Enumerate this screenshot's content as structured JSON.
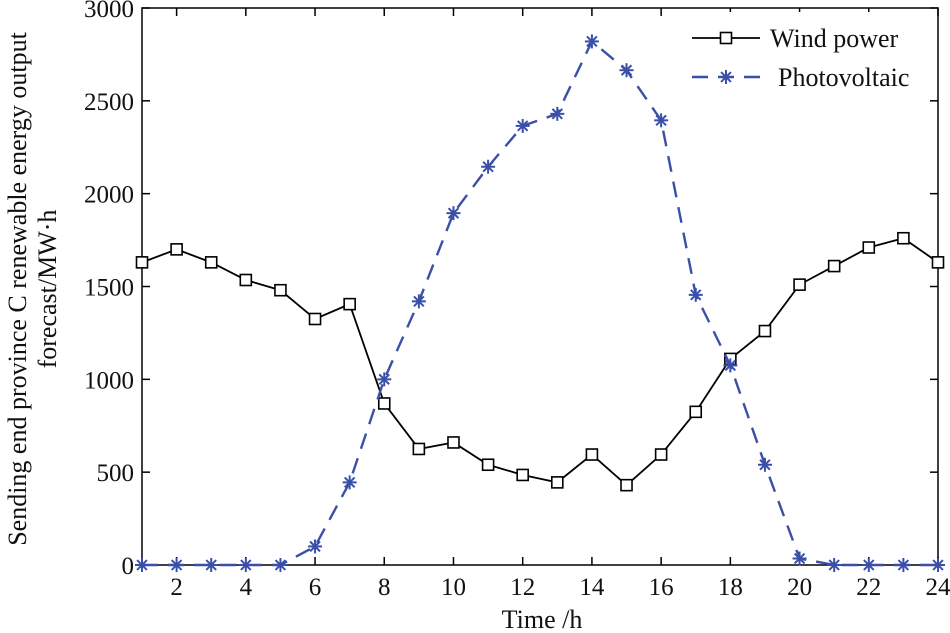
{
  "chart_data": {
    "type": "line",
    "title": "",
    "xlabel": "Time /h",
    "ylabel_line1": "Sending end province C renewable energy output",
    "ylabel_line2": "forecast/MW·h",
    "xlim": [
      1,
      24
    ],
    "ylim": [
      0,
      3000
    ],
    "x_ticks": [
      2,
      4,
      6,
      8,
      10,
      12,
      14,
      16,
      18,
      20,
      22,
      24
    ],
    "y_ticks": [
      0,
      500,
      1000,
      1500,
      2000,
      2500,
      3000
    ],
    "grid": false,
    "legend_position": "top-right",
    "x": [
      1,
      2,
      3,
      4,
      5,
      6,
      7,
      8,
      9,
      10,
      11,
      12,
      13,
      14,
      15,
      16,
      17,
      18,
      19,
      20,
      21,
      22,
      23,
      24
    ],
    "series": [
      {
        "name": "Wind power",
        "color": "#000000",
        "line_style": "solid",
        "marker": "square",
        "values": [
          1630,
          1700,
          1630,
          1535,
          1480,
          1325,
          1405,
          870,
          625,
          660,
          540,
          485,
          445,
          595,
          430,
          595,
          825,
          1110,
          1260,
          1510,
          1610,
          1710,
          1760,
          1630
        ]
      },
      {
        "name": "Photovoltaic",
        "color": "#3a4fa8",
        "line_style": "dashed",
        "marker": "asterisk",
        "values": [
          0,
          0,
          0,
          0,
          0,
          100,
          445,
          1000,
          1420,
          1895,
          2145,
          2365,
          2430,
          2820,
          2665,
          2395,
          1455,
          1075,
          540,
          35,
          0,
          0,
          0,
          0
        ]
      }
    ]
  }
}
